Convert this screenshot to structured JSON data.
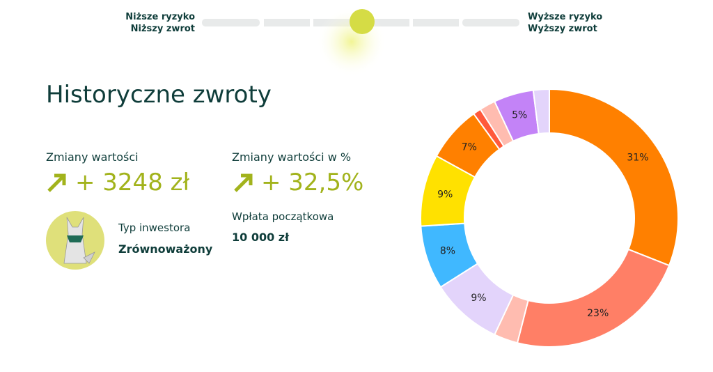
{
  "risk_slider": {
    "low_risk": "Niższe ryzyko",
    "low_return": "Niższy zwrot",
    "high_risk": "Wyższe ryzyko",
    "high_return": "Wyższy zwrot"
  },
  "header": {
    "title": "Historyczne zwroty"
  },
  "stats": {
    "value_change_label": "Zmiany wartości",
    "value_change": "+ 3248 zł",
    "percent_change_label": "Zmiany wartości w %",
    "percent_change": "+ 32,5%",
    "investor_type_label": "Typ inwestora",
    "investor_type": "Zrównoważony",
    "deposit_label": "Wpłata początkowa",
    "deposit": "10 000 zł"
  },
  "chart_data": {
    "type": "pie",
    "values": [
      31,
      23,
      3,
      9,
      8,
      9,
      7,
      1,
      2,
      5,
      2
    ],
    "value_labels": [
      "31%",
      "23%",
      null,
      "9%",
      "8%",
      "9%",
      "7%",
      null,
      null,
      "5%",
      null
    ],
    "colors": [
      "#ff8000",
      "#ff7f66",
      "#ffbcb0",
      "#e3d4fb",
      "#40b8ff",
      "#ffe100",
      "#ff8000",
      "#ff5a3c",
      "#ffbcb0",
      "#c383f7",
      "#e3d4fb"
    ]
  }
}
